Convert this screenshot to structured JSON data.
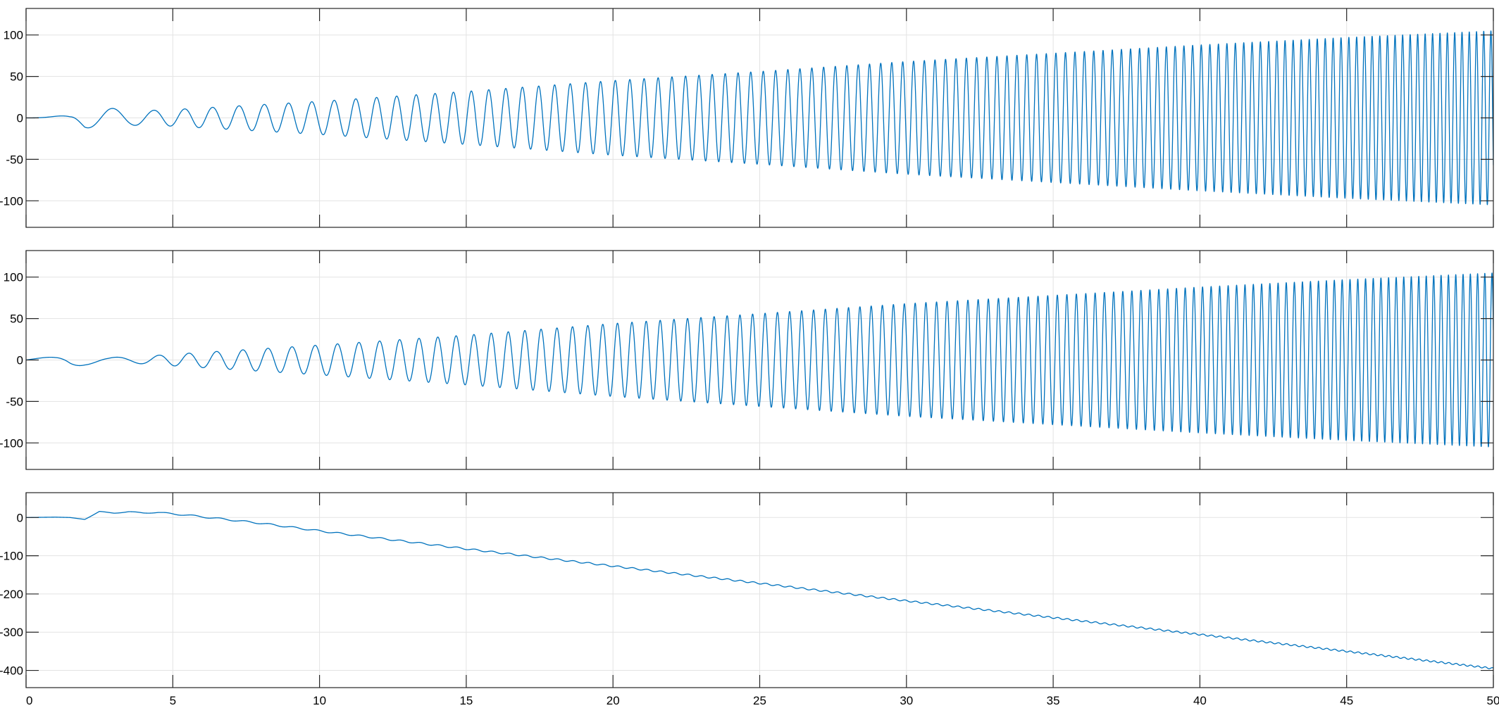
{
  "figure": {
    "background": "#ffffff",
    "line_color": "#0072BD",
    "grid_color": "#e3e3e3",
    "axis_color": "#262626"
  },
  "chart_data": [
    {
      "type": "line",
      "title": "",
      "xlabel": "",
      "ylabel": "",
      "xlim": [
        0,
        50
      ],
      "ylim": [
        -132,
        132
      ],
      "xticks": [
        0,
        5,
        10,
        15,
        20,
        25,
        30,
        35,
        40,
        45,
        50
      ],
      "xtick_labels_shown": false,
      "yticks": [
        -100,
        -50,
        0,
        50,
        100
      ],
      "ytick_labels": [
        "-100",
        "-50",
        "0",
        "50",
        "100"
      ],
      "grid": true,
      "legend": "none",
      "series": [
        {
          "x": [
            0,
            1.0,
            1.5,
            2.0,
            2.8,
            3.6,
            4.2,
            5.0,
            10,
            15,
            20,
            25,
            30,
            35,
            40,
            45,
            50
          ],
          "envelope": [
            0,
            2,
            3,
            12,
            12,
            9,
            9,
            10,
            20,
            32,
            45,
            56,
            68,
            78,
            88,
            97,
            105
          ],
          "center": [
            0,
            0,
            0,
            0,
            0,
            0,
            0,
            0,
            0,
            0,
            0,
            0,
            0,
            0,
            0,
            0,
            0
          ],
          "freq_hz": [
            0,
            0.4,
            0.5,
            0.55,
            0.6,
            0.7,
            0.8,
            1.0,
            1.3,
            1.65,
            2.0,
            2.35,
            2.7,
            3.05,
            3.4,
            3.75,
            4.1
          ],
          "phase_deg": 0
        }
      ]
    },
    {
      "type": "line",
      "title": "",
      "xlabel": "",
      "ylabel": "",
      "xlim": [
        0,
        50
      ],
      "ylim": [
        -132,
        132
      ],
      "xticks": [
        0,
        5,
        10,
        15,
        20,
        25,
        30,
        35,
        40,
        45,
        50
      ],
      "xtick_labels_shown": false,
      "yticks": [
        -100,
        -50,
        0,
        50,
        100
      ],
      "ytick_labels": [
        "-100",
        "-50",
        "0",
        "50",
        "100"
      ],
      "grid": true,
      "legend": "none",
      "series": [
        {
          "x": [
            0,
            1.0,
            1.5,
            2.0,
            2.8,
            3.6,
            4.2,
            5.0,
            10,
            15,
            20,
            25,
            30,
            35,
            40,
            45,
            50
          ],
          "envelope": [
            0,
            5,
            10,
            6,
            3,
            4,
            5,
            7,
            18,
            30,
            44,
            56,
            68,
            78,
            88,
            97,
            105
          ],
          "center": [
            0,
            0,
            0,
            0,
            0,
            0,
            0,
            0,
            0,
            0,
            0,
            0,
            0,
            0,
            0,
            0,
            0
          ],
          "freq_hz": [
            0,
            0.3,
            0.35,
            0.4,
            0.5,
            0.6,
            0.8,
            1.0,
            1.3,
            1.65,
            2.0,
            2.35,
            2.7,
            3.05,
            3.4,
            3.75,
            4.1
          ],
          "phase_deg": 90
        }
      ]
    },
    {
      "type": "line",
      "title": "",
      "xlabel": "",
      "ylabel": "",
      "xlim": [
        0,
        50
      ],
      "ylim": [
        -445,
        65
      ],
      "xticks": [
        0,
        5,
        10,
        15,
        20,
        25,
        30,
        35,
        40,
        45,
        50
      ],
      "xtick_labels": [
        "0",
        "5",
        "10",
        "15",
        "20",
        "25",
        "30",
        "35",
        "40",
        "45",
        "50"
      ],
      "xtick_labels_shown": true,
      "yticks": [
        -400,
        -300,
        -200,
        -100,
        0
      ],
      "ytick_labels": [
        "-400",
        "-300",
        "-200",
        "-100",
        "0"
      ],
      "grid": true,
      "legend": "none",
      "series": [
        {
          "x": [
            0,
            1.0,
            1.5,
            2.0,
            2.5,
            3.0,
            3.5,
            4.0,
            4.5,
            5,
            6,
            8,
            10,
            15,
            20,
            25,
            30,
            35,
            40,
            45,
            50
          ],
          "center": [
            0,
            1,
            0,
            -5,
            15,
            12,
            15,
            12,
            13,
            10,
            2,
            -15,
            -35,
            -82,
            -127,
            -172,
            -218,
            -262,
            -306,
            -350,
            -395
          ],
          "envelope": [
            0,
            0,
            0,
            0,
            1,
            1,
            1,
            1,
            1,
            2,
            2,
            2,
            2,
            2,
            2,
            2,
            2,
            2,
            2,
            2,
            2
          ],
          "freq_hz": [
            0,
            0.5,
            0.6,
            0.7,
            0.8,
            0.8,
            0.9,
            1.0,
            1.0,
            1.0,
            1.1,
            1.2,
            1.3,
            1.65,
            2.0,
            2.35,
            2.7,
            3.05,
            3.4,
            3.75,
            4.1
          ],
          "phase_deg": 0
        }
      ]
    }
  ]
}
